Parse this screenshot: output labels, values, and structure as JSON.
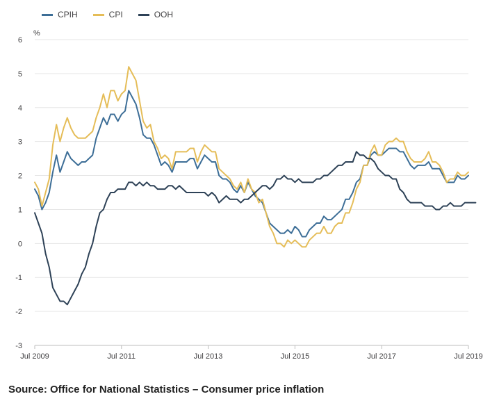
{
  "chart_data": {
    "type": "line",
    "ylabel": "%",
    "ylim": [
      -3,
      6
    ],
    "yticks": [
      -3,
      -2,
      -1,
      0,
      1,
      2,
      3,
      4,
      5,
      6
    ],
    "xlim": [
      0,
      120
    ],
    "xticks": [
      {
        "at": 0,
        "label": "Jul 2009"
      },
      {
        "at": 24,
        "label": "Jul 2011"
      },
      {
        "at": 48,
        "label": "Jul 2013"
      },
      {
        "at": 72,
        "label": "Jul 2015"
      },
      {
        "at": 96,
        "label": "Jul 2017"
      },
      {
        "at": 120,
        "label": "Jul 2019"
      }
    ],
    "legend_position": "top-left",
    "grid": "horizontal",
    "series": [
      {
        "name": "CPIH",
        "color": "#3d6e97",
        "values": [
          1.6,
          1.4,
          1.0,
          1.2,
          1.5,
          2.1,
          2.6,
          2.1,
          2.4,
          2.7,
          2.5,
          2.4,
          2.3,
          2.4,
          2.4,
          2.5,
          2.6,
          3.1,
          3.4,
          3.7,
          3.5,
          3.8,
          3.8,
          3.6,
          3.8,
          3.9,
          4.5,
          4.3,
          4.1,
          3.7,
          3.2,
          3.1,
          3.1,
          2.9,
          2.6,
          2.3,
          2.4,
          2.3,
          2.1,
          2.4,
          2.4,
          2.4,
          2.4,
          2.5,
          2.5,
          2.2,
          2.4,
          2.6,
          2.5,
          2.4,
          2.4,
          2.0,
          1.9,
          1.9,
          1.8,
          1.6,
          1.5,
          1.7,
          1.5,
          1.8,
          1.6,
          1.4,
          1.3,
          1.2,
          0.9,
          0.6,
          0.5,
          0.4,
          0.3,
          0.3,
          0.4,
          0.3,
          0.5,
          0.4,
          0.2,
          0.2,
          0.4,
          0.5,
          0.6,
          0.6,
          0.8,
          0.7,
          0.7,
          0.8,
          0.9,
          1.0,
          1.3,
          1.3,
          1.5,
          1.8,
          1.9,
          2.3,
          2.3,
          2.6,
          2.7,
          2.6,
          2.6,
          2.7,
          2.8,
          2.8,
          2.8,
          2.7,
          2.7,
          2.5,
          2.3,
          2.2,
          2.3,
          2.3,
          2.3,
          2.4,
          2.2,
          2.2,
          2.2,
          2.0,
          1.8,
          1.8,
          1.8,
          2.0,
          1.9,
          1.9,
          2.0
        ]
      },
      {
        "name": "CPI",
        "color": "#e5bd58",
        "values": [
          1.8,
          1.6,
          1.1,
          1.5,
          1.9,
          2.9,
          3.5,
          3.0,
          3.4,
          3.7,
          3.4,
          3.2,
          3.1,
          3.1,
          3.1,
          3.2,
          3.3,
          3.7,
          4.0,
          4.4,
          4.0,
          4.5,
          4.5,
          4.2,
          4.4,
          4.5,
          5.2,
          5.0,
          4.8,
          4.2,
          3.6,
          3.4,
          3.5,
          3.0,
          2.8,
          2.5,
          2.6,
          2.5,
          2.2,
          2.7,
          2.7,
          2.7,
          2.7,
          2.8,
          2.8,
          2.4,
          2.7,
          2.9,
          2.8,
          2.7,
          2.7,
          2.2,
          2.1,
          2.0,
          1.9,
          1.7,
          1.6,
          1.8,
          1.5,
          1.9,
          1.6,
          1.5,
          1.2,
          1.3,
          0.9,
          0.5,
          0.3,
          0.0,
          0.0,
          -0.1,
          0.1,
          0.0,
          0.1,
          0.0,
          -0.1,
          -0.1,
          0.1,
          0.2,
          0.3,
          0.3,
          0.5,
          0.3,
          0.3,
          0.5,
          0.6,
          0.6,
          0.9,
          0.9,
          1.2,
          1.6,
          1.8,
          2.3,
          2.3,
          2.7,
          2.9,
          2.6,
          2.6,
          2.9,
          3.0,
          3.0,
          3.1,
          3.0,
          3.0,
          2.7,
          2.5,
          2.4,
          2.4,
          2.4,
          2.5,
          2.7,
          2.4,
          2.4,
          2.3,
          2.1,
          1.8,
          1.9,
          1.9,
          2.1,
          2.0,
          2.0,
          2.1
        ]
      },
      {
        "name": "OOH",
        "color": "#2e4257",
        "values": [
          0.9,
          0.6,
          0.3,
          -0.3,
          -0.7,
          -1.3,
          -1.5,
          -1.7,
          -1.7,
          -1.8,
          -1.6,
          -1.4,
          -1.2,
          -0.9,
          -0.7,
          -0.3,
          0.0,
          0.5,
          0.9,
          1.0,
          1.3,
          1.5,
          1.5,
          1.6,
          1.6,
          1.6,
          1.8,
          1.8,
          1.7,
          1.8,
          1.7,
          1.8,
          1.7,
          1.7,
          1.6,
          1.6,
          1.6,
          1.7,
          1.7,
          1.6,
          1.7,
          1.6,
          1.5,
          1.5,
          1.5,
          1.5,
          1.5,
          1.5,
          1.4,
          1.5,
          1.4,
          1.2,
          1.3,
          1.4,
          1.3,
          1.3,
          1.3,
          1.2,
          1.3,
          1.3,
          1.4,
          1.5,
          1.6,
          1.7,
          1.7,
          1.6,
          1.7,
          1.9,
          1.9,
          2.0,
          1.9,
          1.9,
          1.8,
          1.9,
          1.8,
          1.8,
          1.8,
          1.8,
          1.9,
          1.9,
          2.0,
          2.0,
          2.1,
          2.2,
          2.3,
          2.3,
          2.4,
          2.4,
          2.4,
          2.7,
          2.6,
          2.6,
          2.5,
          2.5,
          2.4,
          2.2,
          2.1,
          2.0,
          2.0,
          1.9,
          1.9,
          1.6,
          1.5,
          1.3,
          1.2,
          1.2,
          1.2,
          1.2,
          1.1,
          1.1,
          1.1,
          1.0,
          1.0,
          1.1,
          1.1,
          1.2,
          1.1,
          1.1,
          1.1,
          1.2,
          1.2,
          1.2,
          1.2
        ]
      }
    ]
  },
  "source": "Source: Office for National Statistics – Consumer price inflation"
}
